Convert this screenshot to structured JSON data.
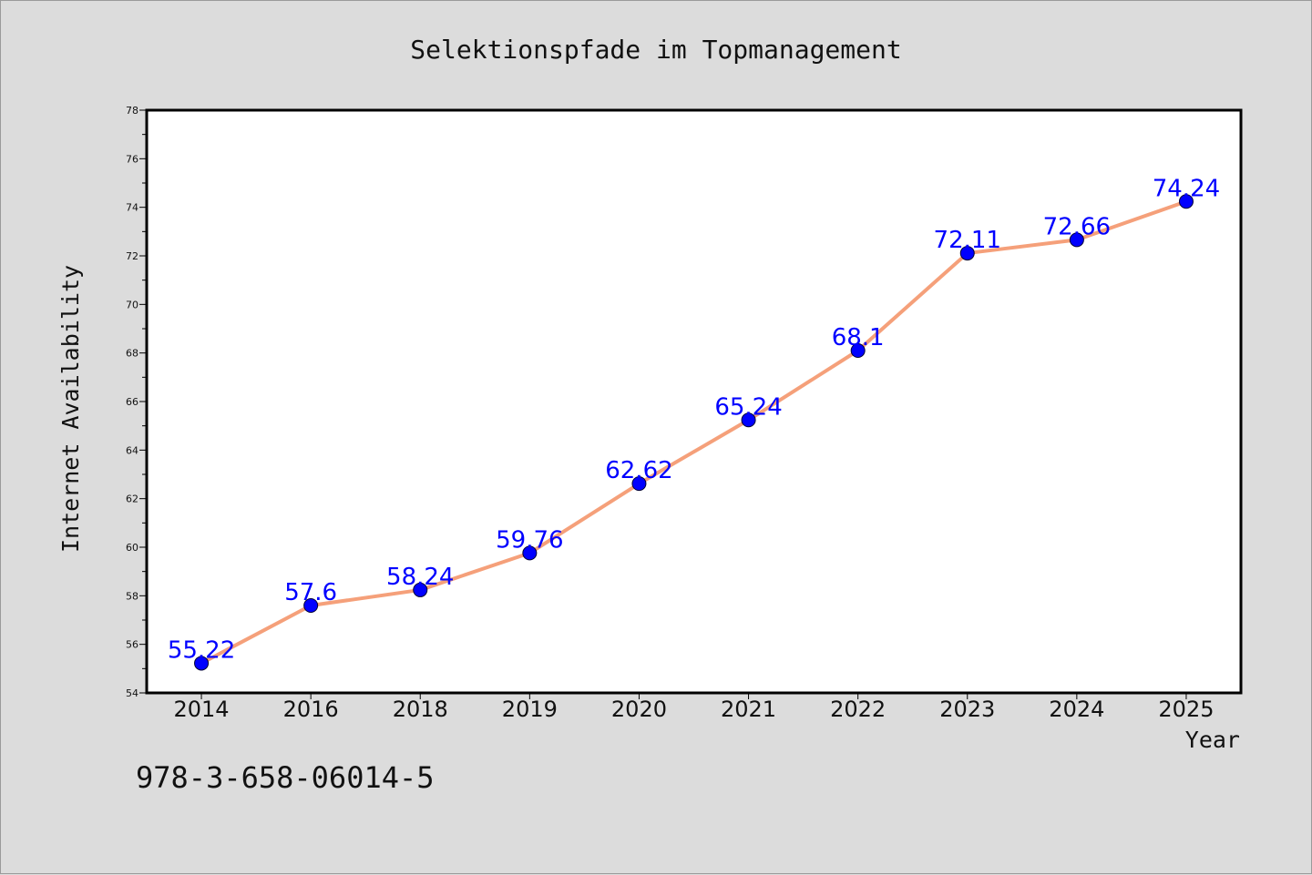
{
  "chart_data": {
    "type": "line",
    "title": "Selektionspfade im Topmanagement",
    "xlabel": "Year",
    "ylabel": "Internet Availability",
    "categories": [
      "2014",
      "2016",
      "2018",
      "2019",
      "2020",
      "2021",
      "2022",
      "2023",
      "2024",
      "2025"
    ],
    "series": [
      {
        "values": [
          55.22,
          57.6,
          58.24,
          59.76,
          62.62,
          65.24,
          68.1,
          72.11,
          72.66,
          74.24
        ],
        "data_labels": [
          "55.22",
          "57.6",
          "58.24",
          "59.76",
          "62.62",
          "65.24",
          "68.1",
          "72.11",
          "72.66",
          "74.24"
        ],
        "line_color": "#f5a07a",
        "marker_color": "#0000ff"
      }
    ],
    "ylim": [
      54,
      78
    ],
    "y_ticks": [
      "54",
      "56",
      "58",
      "60",
      "62",
      "64",
      "66",
      "68",
      "70",
      "72",
      "74",
      "76",
      "78"
    ],
    "grid": false,
    "legend": "none"
  },
  "footnote": "978-3-658-06014-5",
  "colors": {
    "background": "#dcdcdc",
    "plot_background": "#ffffff",
    "line": "#f5a07a",
    "marker": "#0000ff",
    "data_label": "#0000ff"
  }
}
